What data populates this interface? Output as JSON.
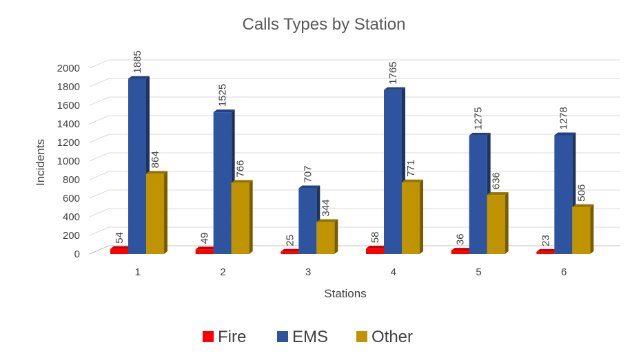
{
  "chart_data": {
    "type": "bar",
    "title": "Calls Types by Station",
    "xlabel": "Stations",
    "ylabel": "Incidents",
    "categories": [
      "1",
      "2",
      "3",
      "4",
      "5",
      "6"
    ],
    "ylim": [
      0,
      2000
    ],
    "yticks": [
      "0",
      "200",
      "400",
      "600",
      "800",
      "1000",
      "1200",
      "1400",
      "1600",
      "1800",
      "2000"
    ],
    "grid": true,
    "legend_position": "bottom",
    "series": [
      {
        "name": "Fire",
        "color": "#ff0000",
        "values": [
          54,
          49,
          25,
          58,
          36,
          23
        ]
      },
      {
        "name": "EMS",
        "color": "#2e54a0",
        "values": [
          1885,
          1525,
          707,
          1765,
          1275,
          1278
        ]
      },
      {
        "name": "Other",
        "color": "#c09400",
        "values": [
          864,
          766,
          344,
          771,
          636,
          506
        ]
      }
    ]
  }
}
